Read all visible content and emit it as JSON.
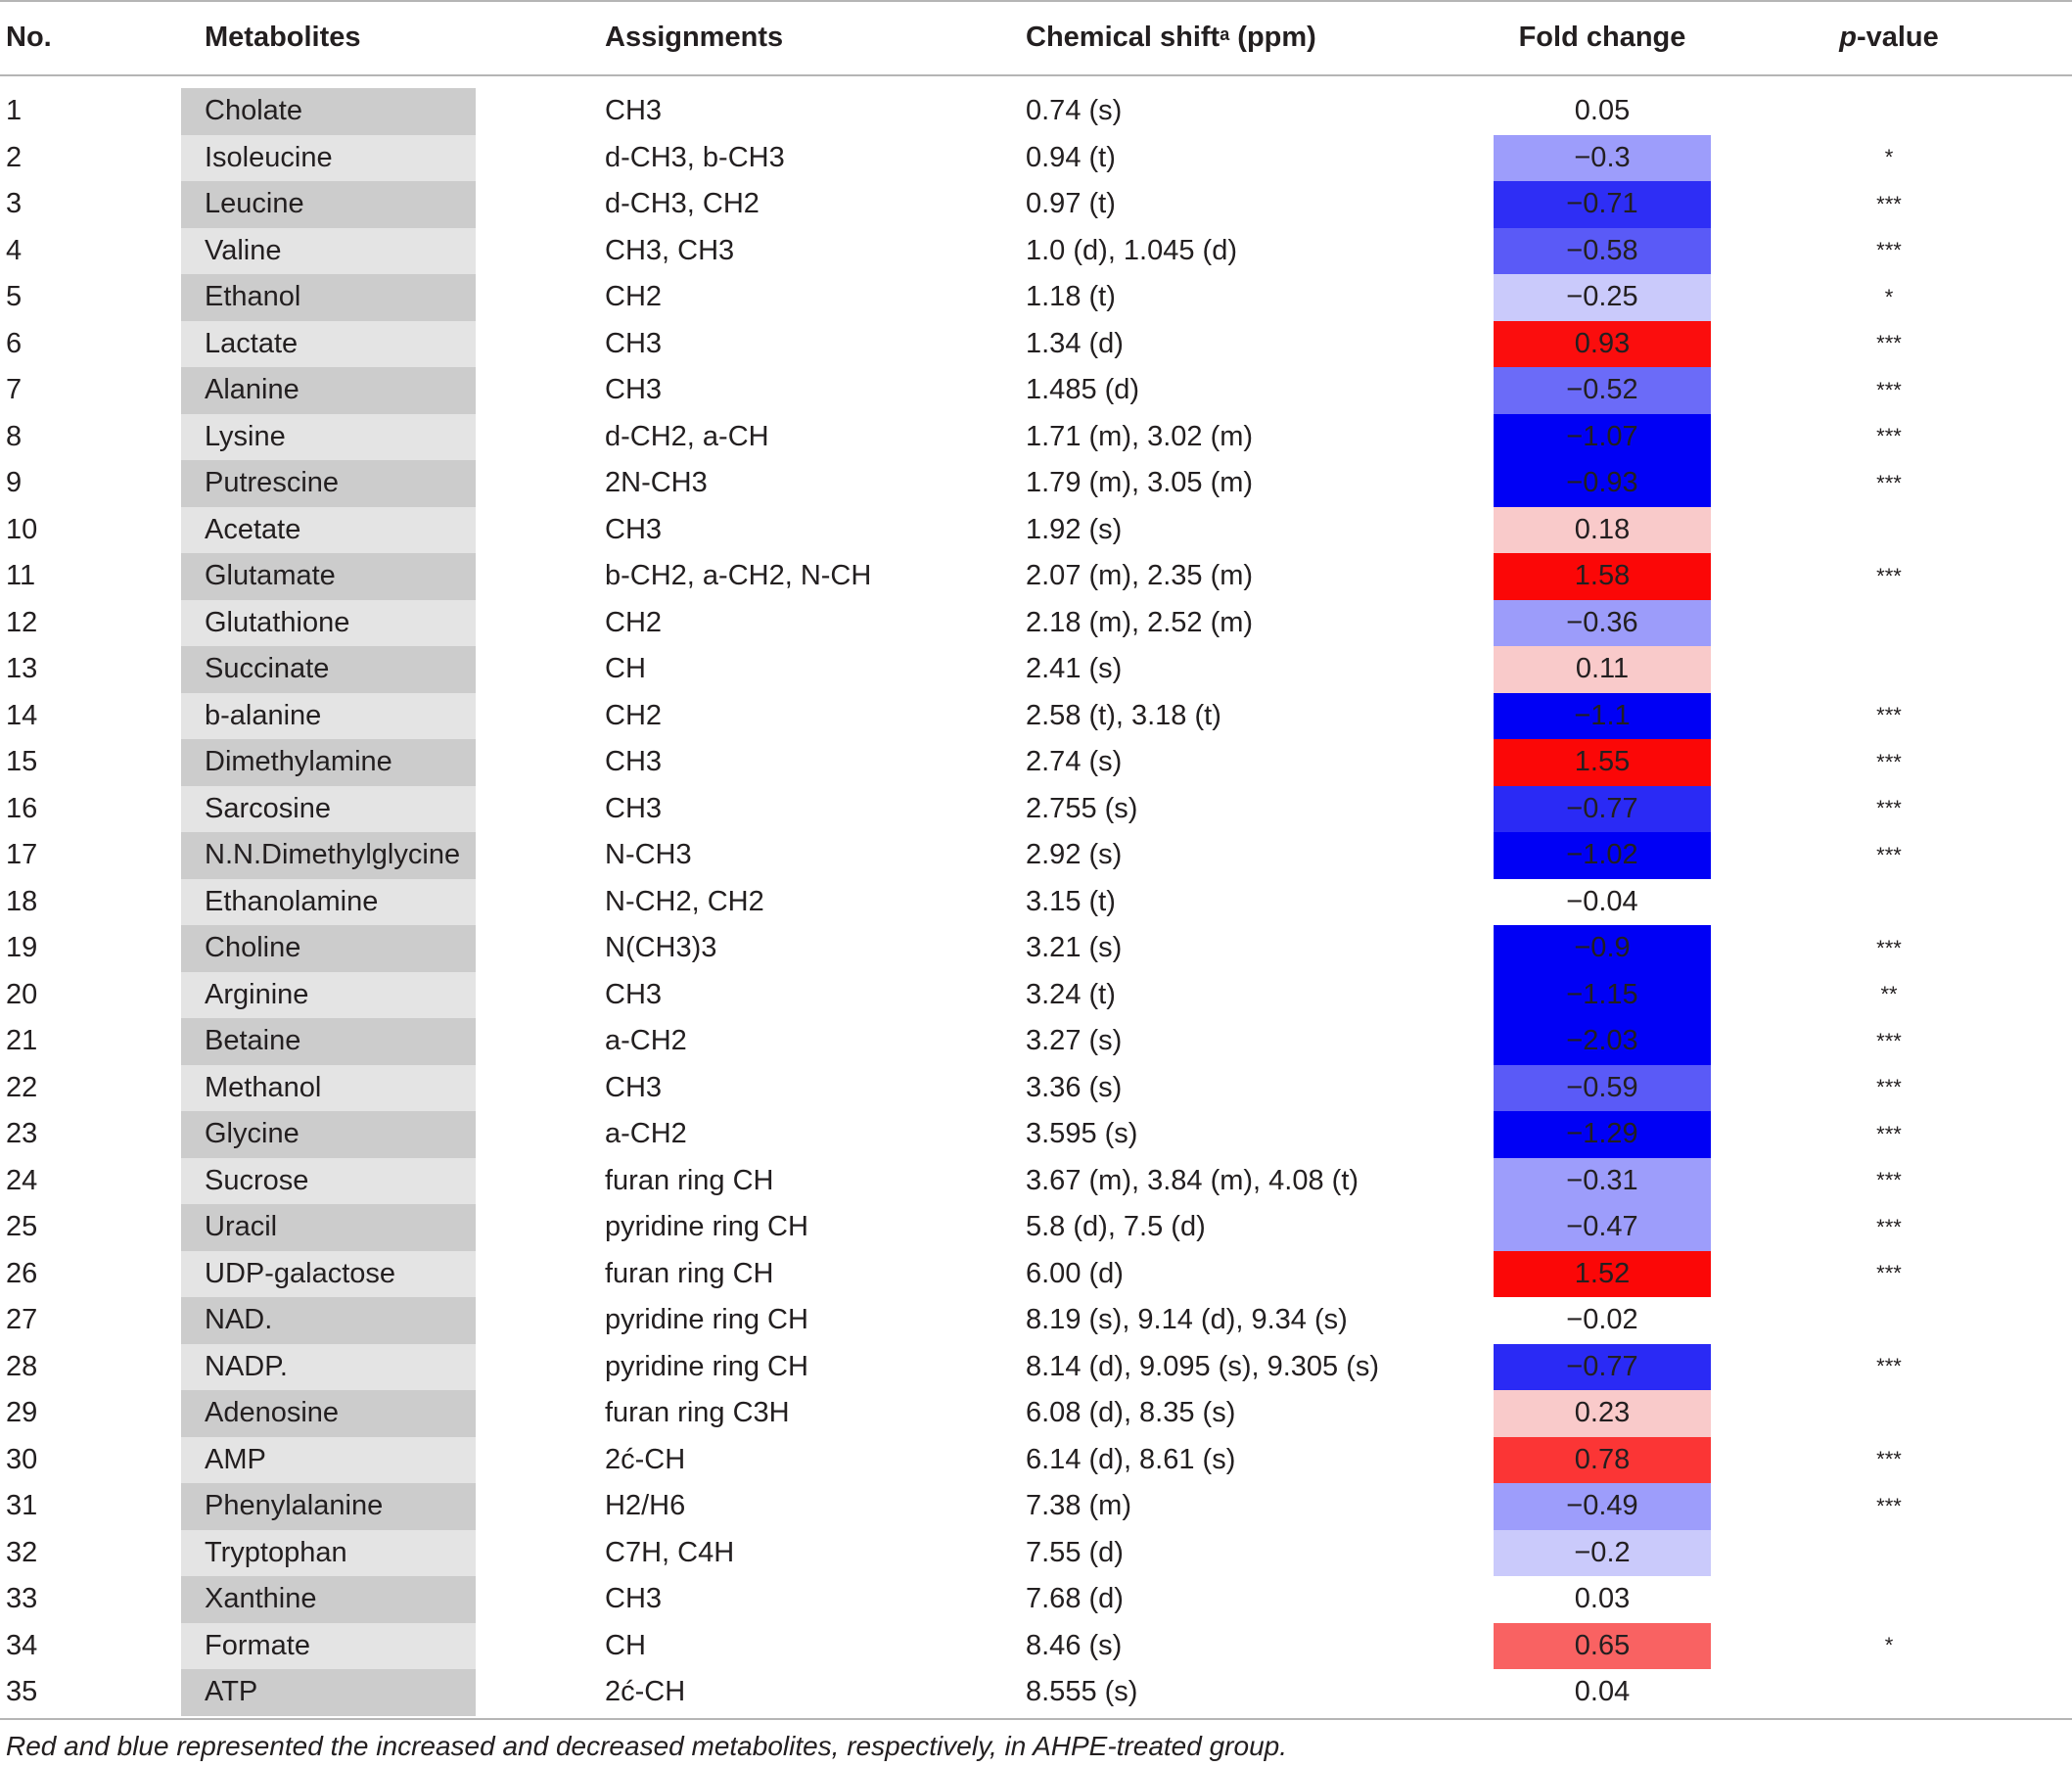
{
  "table": {
    "headers": {
      "no": "No.",
      "metabolites": "Metabolites",
      "assignments": "Assignments",
      "shift_label": "Chemical shift",
      "shift_sup": "a",
      "shift_unit": " (ppm)",
      "fold_change": "Fold change",
      "p_italic": "p",
      "p_rest": "-value"
    },
    "rows": [
      {
        "no": "1",
        "metabolite": "Cholate",
        "assignment": "CH3",
        "shift": "0.74 (s)",
        "fold": "0.05",
        "p": "",
        "fill": "#ffffff"
      },
      {
        "no": "2",
        "metabolite": "Isoleucine",
        "assignment": "d-CH3, b-CH3",
        "shift": "0.94 (t)",
        "fold": "−0.3",
        "p": "*",
        "fill": "#9d9dfb"
      },
      {
        "no": "3",
        "metabolite": "Leucine",
        "assignment": "d-CH3, CH2",
        "shift": "0.97 (t)",
        "fold": "−0.71",
        "p": "***",
        "fill": "#2e2ef5"
      },
      {
        "no": "4",
        "metabolite": "Valine",
        "assignment": "CH3, CH3",
        "shift": "1.0 (d), 1.045 (d)",
        "fold": "−0.58",
        "p": "***",
        "fill": "#5a5af7"
      },
      {
        "no": "5",
        "metabolite": "Ethanol",
        "assignment": "CH2",
        "shift": "1.18 (t)",
        "fold": "−0.25",
        "p": "*",
        "fill": "#cacafb"
      },
      {
        "no": "6",
        "metabolite": "Lactate",
        "assignment": "CH3",
        "shift": "1.34 (d)",
        "fold": "0.93",
        "p": "***",
        "fill": "#fb0d0d"
      },
      {
        "no": "7",
        "metabolite": "Alanine",
        "assignment": "CH3",
        "shift": "1.485 (d)",
        "fold": "−0.52",
        "p": "***",
        "fill": "#6b6bf8"
      },
      {
        "no": "8",
        "metabolite": "Lysine",
        "assignment": "d-CH2, a-CH",
        "shift": "1.71 (m), 3.02 (m)",
        "fold": "−1.07",
        "p": "***",
        "fill": "#0000f5"
      },
      {
        "no": "9",
        "metabolite": "Putrescine",
        "assignment": "2N-CH3",
        "shift": "1.79 (m), 3.05 (m)",
        "fold": "−0.93",
        "p": "***",
        "fill": "#0000f5"
      },
      {
        "no": "10",
        "metabolite": "Acetate",
        "assignment": "CH3",
        "shift": "1.92 (s)",
        "fold": "0.18",
        "p": "",
        "fill": "#f9caca"
      },
      {
        "no": "11",
        "metabolite": "Glutamate",
        "assignment": "b-CH2, a-CH2, N-CH",
        "shift": "2.07 (m), 2.35 (m)",
        "fold": "1.58",
        "p": "***",
        "fill": "#fb0707"
      },
      {
        "no": "12",
        "metabolite": "Glutathione",
        "assignment": "CH2",
        "shift": "2.18 (m), 2.52 (m)",
        "fold": "−0.36",
        "p": "",
        "fill": "#9c9cfa"
      },
      {
        "no": "13",
        "metabolite": "Succinate",
        "assignment": "CH",
        "shift": "2.41 (s)",
        "fold": "0.11",
        "p": "",
        "fill": "#f9caca"
      },
      {
        "no": "14",
        "metabolite": "b-alanine",
        "assignment": "CH2",
        "shift": "2.58 (t), 3.18 (t)",
        "fold": "−1.1",
        "p": "***",
        "fill": "#0000f5"
      },
      {
        "no": "15",
        "metabolite": "Dimethylamine",
        "assignment": "CH3",
        "shift": "2.74 (s)",
        "fold": "1.55",
        "p": "***",
        "fill": "#fb0707"
      },
      {
        "no": "16",
        "metabolite": "Sarcosine",
        "assignment": "CH3",
        "shift": "2.755 (s)",
        "fold": "−0.77",
        "p": "***",
        "fill": "#2a2af5"
      },
      {
        "no": "17",
        "metabolite": "N.N.Dimethylglycine",
        "assignment": "N-CH3",
        "shift": "2.92 (s)",
        "fold": "−1.02",
        "p": "***",
        "fill": "#0000f5"
      },
      {
        "no": "18",
        "metabolite": "Ethanolamine",
        "assignment": "N-CH2, CH2",
        "shift": "3.15 (t)",
        "fold": "−0.04",
        "p": "",
        "fill": "#ffffff"
      },
      {
        "no": "19",
        "metabolite": "Choline",
        "assignment": "N(CH3)3",
        "shift": "3.21 (s)",
        "fold": "−0.9",
        "p": "***",
        "fill": "#0000f5"
      },
      {
        "no": "20",
        "metabolite": "Arginine",
        "assignment": "CH3",
        "shift": "3.24 (t)",
        "fold": "−1.15",
        "p": "**",
        "fill": "#0000f5"
      },
      {
        "no": "21",
        "metabolite": "Betaine",
        "assignment": "a-CH2",
        "shift": "3.27 (s)",
        "fold": "−2.03",
        "p": "***",
        "fill": "#0000f5"
      },
      {
        "no": "22",
        "metabolite": "Methanol",
        "assignment": "CH3",
        "shift": "3.36 (s)",
        "fold": "−0.59",
        "p": "***",
        "fill": "#5a5af7"
      },
      {
        "no": "23",
        "metabolite": "Glycine",
        "assignment": "a-CH2",
        "shift": "3.595 (s)",
        "fold": "−1.29",
        "p": "***",
        "fill": "#0000f5"
      },
      {
        "no": "24",
        "metabolite": "Sucrose",
        "assignment": "furan ring CH",
        "shift": "3.67 (m), 3.84 (m), 4.08 (t)",
        "fold": "−0.31",
        "p": "***",
        "fill": "#9d9dfb"
      },
      {
        "no": "25",
        "metabolite": "Uracil",
        "assignment": "pyridine ring CH",
        "shift": "5.8 (d), 7.5 (d)",
        "fold": "−0.47",
        "p": "***",
        "fill": "#9d9dfb"
      },
      {
        "no": "26",
        "metabolite": "UDP-galactose",
        "assignment": "furan ring CH",
        "shift": "6.00 (d)",
        "fold": "1.52",
        "p": "***",
        "fill": "#fb0707"
      },
      {
        "no": "27",
        "metabolite": "NAD.",
        "assignment": "pyridine ring CH",
        "shift": "8.19 (s), 9.14 (d), 9.34 (s)",
        "fold": "−0.02",
        "p": "",
        "fill": "#ffffff"
      },
      {
        "no": "28",
        "metabolite": "NADP.",
        "assignment": "pyridine ring CH",
        "shift": "8.14 (d), 9.095 (s), 9.305 (s)",
        "fold": "−0.77",
        "p": "***",
        "fill": "#2a2af5"
      },
      {
        "no": "29",
        "metabolite": "Adenosine",
        "assignment": "furan ring C3H",
        "shift": "6.08 (d), 8.35 (s)",
        "fold": "0.23",
        "p": "",
        "fill": "#f9caca"
      },
      {
        "no": "30",
        "metabolite": "AMP",
        "assignment": "2ć-CH",
        "shift": "6.14 (d), 8.61 (s)",
        "fold": "0.78",
        "p": "***",
        "fill": "#fb3535"
      },
      {
        "no": "31",
        "metabolite": "Phenylalanine",
        "assignment": "H2/H6",
        "shift": "7.38 (m)",
        "fold": "−0.49",
        "p": "***",
        "fill": "#9d9dfb"
      },
      {
        "no": "32",
        "metabolite": "Tryptophan",
        "assignment": "C7H, C4H",
        "shift": "7.55 (d)",
        "fold": "−0.2",
        "p": "",
        "fill": "#cacafb"
      },
      {
        "no": "33",
        "metabolite": "Xanthine",
        "assignment": "CH3",
        "shift": "7.68 (d)",
        "fold": "0.03",
        "p": "",
        "fill": "#ffffff"
      },
      {
        "no": "34",
        "metabolite": "Formate",
        "assignment": "CH",
        "shift": "8.46 (s)",
        "fold": "0.65",
        "p": "*",
        "fill": "#f96262"
      },
      {
        "no": "35",
        "metabolite": "ATP",
        "assignment": "2ć-CH",
        "shift": "8.555 (s)",
        "fold": "0.04",
        "p": "",
        "fill": "#ffffff"
      }
    ],
    "caption": "Red and blue represented the increased and decreased metabolites, respectively, in AHPE-treated group."
  },
  "colors": {
    "metabolite_cell_dark": "#cccccc",
    "metabolite_cell_light": "#e4e4e4",
    "rule": "#b5b5b5"
  }
}
